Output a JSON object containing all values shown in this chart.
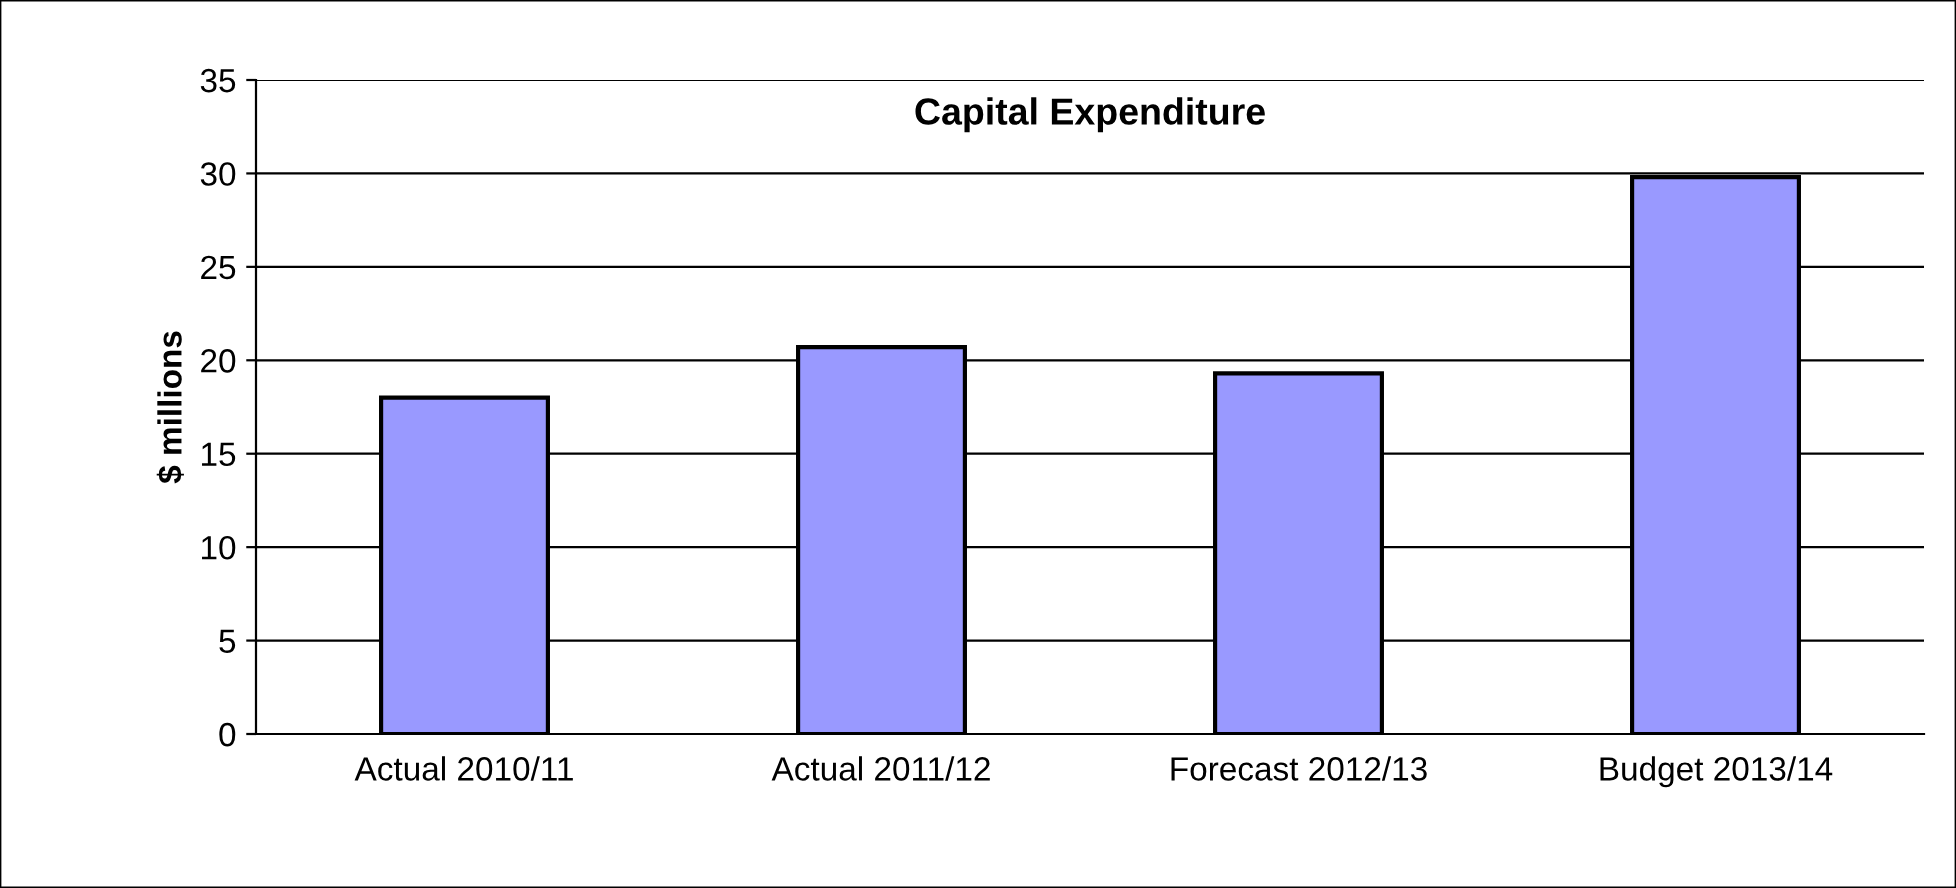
{
  "chart_data": {
    "type": "bar",
    "title": "Capital Expenditure",
    "ylabel": "$ millions",
    "categories": [
      "Actual 2010/11",
      "Actual 2011/12",
      "Forecast 2012/13",
      "Budget 2013/14"
    ],
    "values": [
      18.0,
      20.7,
      19.3,
      29.8
    ],
    "color": "#9999ff",
    "ylim": [
      0,
      35
    ],
    "yticks": [
      0,
      5,
      10,
      15,
      20,
      25,
      30,
      35
    ],
    "grid": "y",
    "legend": false
  }
}
